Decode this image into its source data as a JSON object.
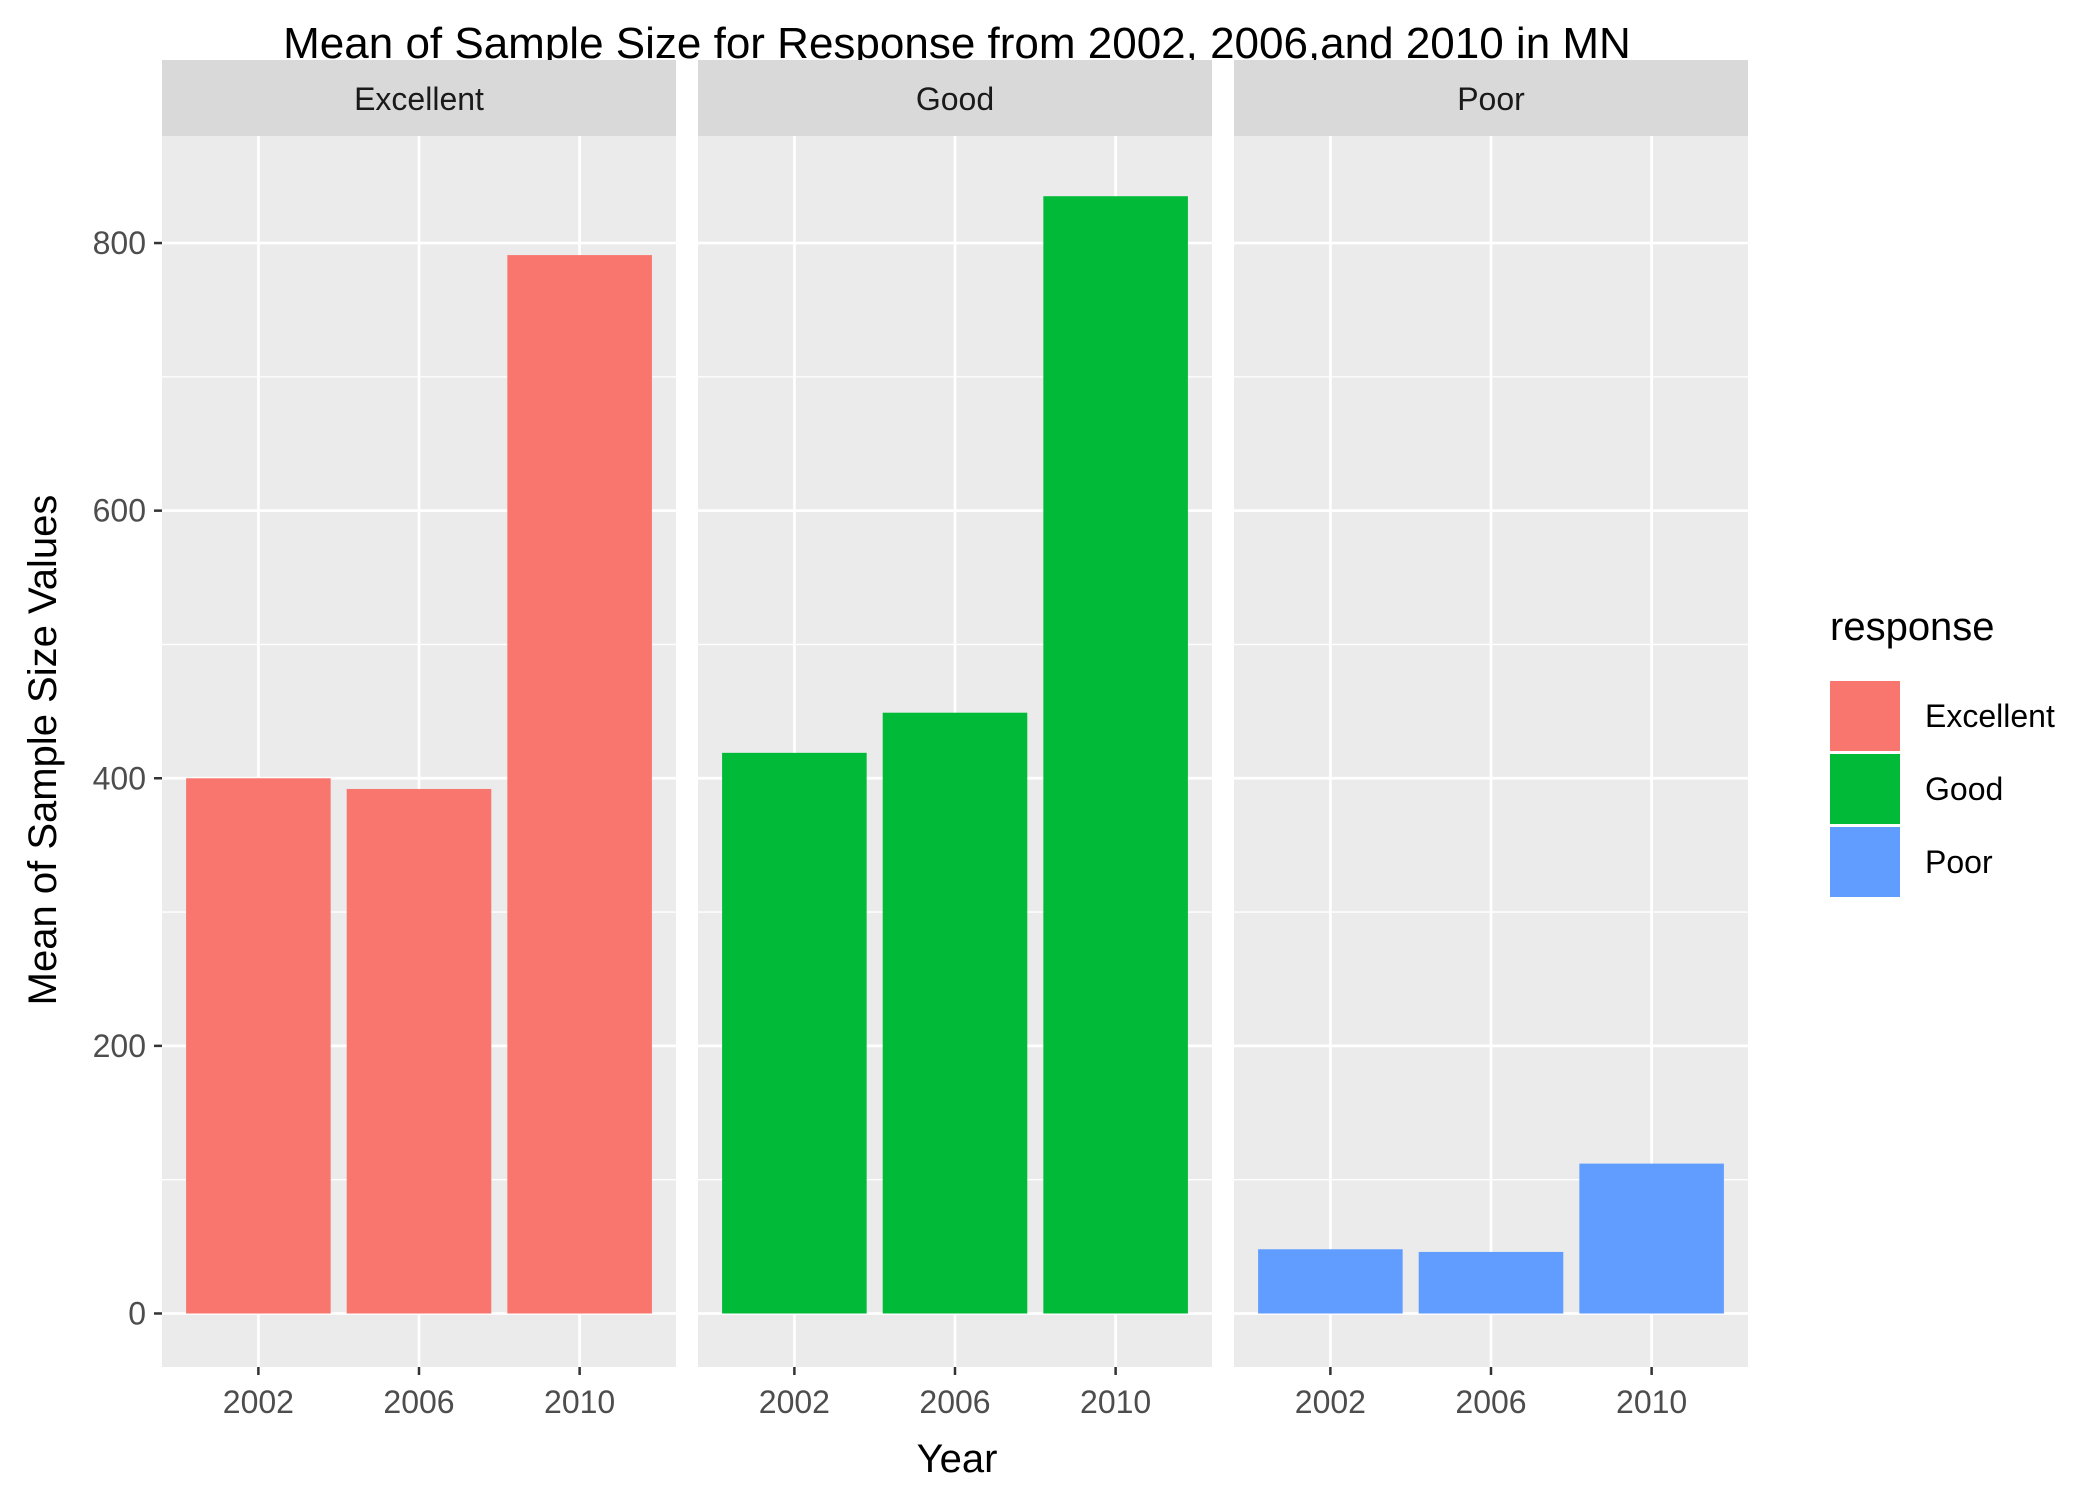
{
  "chart_data": {
    "type": "bar",
    "title": "Mean of Sample Size for Response from 2002, 2006,and 2010 in MN",
    "xlabel": "Year",
    "ylabel": "Mean of Sample Size Values",
    "ylim": [
      -40,
      880
    ],
    "y_ticks": [
      0,
      200,
      400,
      600,
      800
    ],
    "grid": true,
    "facet_by": "response",
    "categories": [
      "2002",
      "2006",
      "2010"
    ],
    "series": [
      {
        "name": "Excellent",
        "color": "#F8766D",
        "values": [
          400,
          392,
          791
        ]
      },
      {
        "name": "Good",
        "color": "#00BA38",
        "values": [
          419,
          449,
          835
        ]
      },
      {
        "name": "Poor",
        "color": "#619CFF",
        "values": [
          48,
          46,
          112
        ]
      }
    ],
    "legend": {
      "title": "response",
      "placement": "right",
      "entries": [
        "Excellent",
        "Good",
        "Poor"
      ]
    }
  }
}
